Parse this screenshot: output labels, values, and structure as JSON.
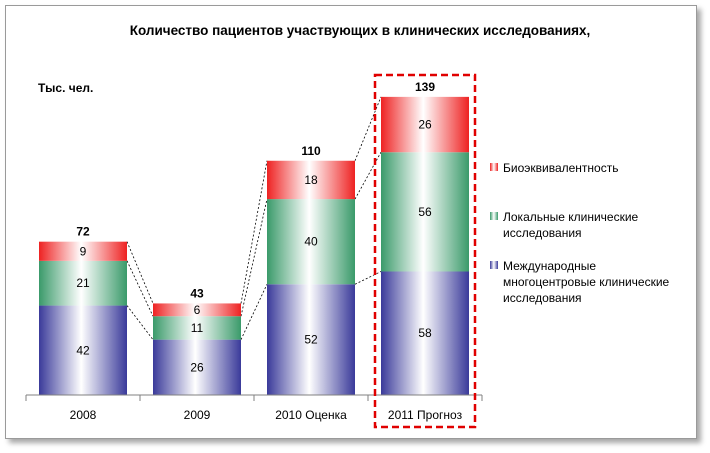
{
  "chart_data": {
    "type": "bar",
    "stacked": true,
    "title": "Количество пациентов участвующих в клинических исследованиях,",
    "unit_label": "Тыс. чел.",
    "categories": [
      "2008",
      "2009",
      "2010 Оценка",
      "2011 Прогноз"
    ],
    "series": [
      {
        "name": "Международные многоцентровые клинические исследования",
        "legend_lines": [
          "Международные",
          "многоцентровые клинические",
          "исследования"
        ],
        "values": [
          42,
          26,
          52,
          58
        ],
        "color": "#3a3a9a"
      },
      {
        "name": "Локальные клинические исследования",
        "legend_lines": [
          "Локальные клинические",
          "исследования"
        ],
        "values": [
          21,
          11,
          40,
          56
        ],
        "color": "#3a9a6a"
      },
      {
        "name": "Биоэквивалентность",
        "legend_lines": [
          "Биоэквивалентность"
        ],
        "values": [
          9,
          6,
          18,
          26
        ],
        "color": "#ee2222"
      }
    ],
    "totals": [
      72,
      43,
      110,
      139
    ],
    "ylim": [
      0,
      139
    ],
    "legend_position": "right",
    "grid": false,
    "highlighted_category": "2011 Прогноз",
    "connector_lines": "dashed"
  }
}
